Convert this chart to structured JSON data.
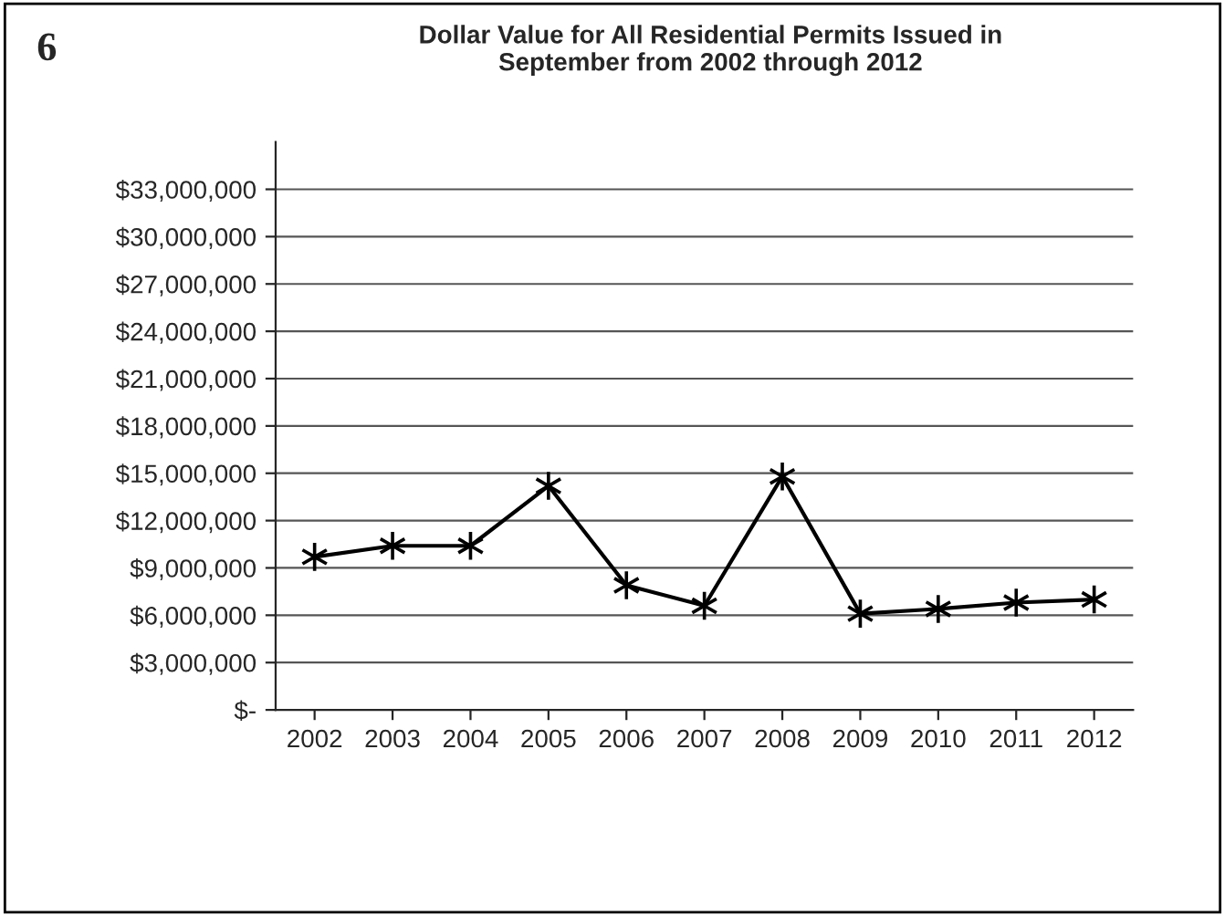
{
  "chart_data": {
    "type": "line",
    "title": "Dollar Value for All Residential Permits Issued in\nSeptember from 2002 through 2012",
    "annotations": [
      "6"
    ],
    "categories": [
      "2002",
      "2003",
      "2004",
      "2005",
      "2006",
      "2007",
      "2008",
      "2009",
      "2010",
      "2011",
      "2012"
    ],
    "series": [
      {
        "color": "#000000",
        "values": [
          9700000,
          10400000,
          10400000,
          14200000,
          7900000,
          6600000,
          14800000,
          6100000,
          6400000,
          6800000,
          7000000
        ]
      }
    ],
    "ylim": [
      0,
      36000000
    ],
    "yticks": [
      {
        "value": 0,
        "label": "$-"
      },
      {
        "value": 3000000,
        "label": "$3,000,000"
      },
      {
        "value": 6000000,
        "label": "$6,000,000"
      },
      {
        "value": 9000000,
        "label": "$9,000,000"
      },
      {
        "value": 12000000,
        "label": "$12,000,000"
      },
      {
        "value": 15000000,
        "label": "$15,000,000"
      },
      {
        "value": 18000000,
        "label": "$18,000,000"
      },
      {
        "value": 21000000,
        "label": "$21,000,000"
      },
      {
        "value": 24000000,
        "label": "$24,000,000"
      },
      {
        "value": 27000000,
        "label": "$27,000,000"
      },
      {
        "value": 30000000,
        "label": "$30,000,000"
      },
      {
        "value": 33000000,
        "label": "$33,000,000"
      }
    ],
    "grid": "y",
    "marker": "cross",
    "line_style": "solid"
  }
}
